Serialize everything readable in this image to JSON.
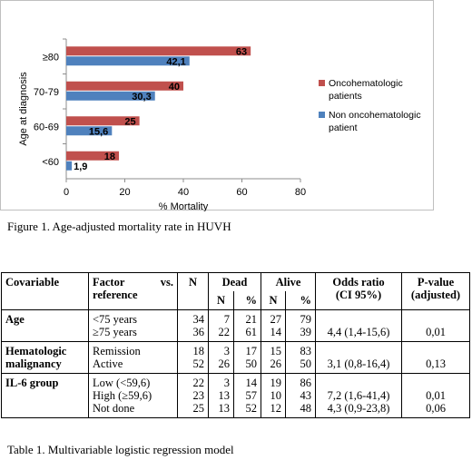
{
  "chart_data": {
    "type": "bar",
    "orientation": "horizontal",
    "categories": [
      "<60",
      "60-69",
      "70-79",
      "≥80"
    ],
    "series": [
      {
        "name": "Oncohematologic patients",
        "color": "#c0504d",
        "values": [
          18,
          25,
          40,
          63
        ],
        "labels": [
          "18",
          "25",
          "40",
          "63"
        ]
      },
      {
        "name": "Non oncohematologic patient",
        "color": "#4f81bd",
        "values": [
          1.9,
          15.6,
          30.3,
          42.1
        ],
        "labels": [
          "1,9",
          "15,6",
          "30,3",
          "42,1"
        ]
      }
    ],
    "xlabel": "% Mortality",
    "ylabel": "Age at diagnosis",
    "xlim": [
      0,
      80
    ],
    "xticks": [
      "0",
      "20",
      "40",
      "60",
      "80"
    ],
    "grid": false,
    "legend_position": "right"
  },
  "figure_caption": "Figure 1. Age-adjusted mortality rate in HUVH",
  "table": {
    "headers": {
      "covariable": "Covariable",
      "factor_line1": "Factor",
      "factor_vs": "vs.",
      "factor_line2": "reference",
      "n": "N",
      "dead": "Dead",
      "alive": "Alive",
      "sub_n": "N",
      "sub_pct": "%",
      "or_line1": "Odds ratio",
      "or_line2": "(CI 95%)",
      "p_line1": "P-value",
      "p_line2": "(adjusted)"
    },
    "groups": [
      {
        "name": "Age",
        "rows": [
          {
            "factor": "<75 years",
            "n": "34",
            "dead_n": "7",
            "dead_pct": "21",
            "alive_n": "27",
            "alive_pct": "79",
            "or": "",
            "p": ""
          },
          {
            "factor": "≥75 years",
            "n": "36",
            "dead_n": "22",
            "dead_pct": "61",
            "alive_n": "14",
            "alive_pct": "39",
            "or": "4,4 (1,4-15,6)",
            "p": "0,01"
          }
        ]
      },
      {
        "name": "Hematologic malignancy",
        "rows": [
          {
            "factor": "Remission",
            "n": "18",
            "dead_n": "3",
            "dead_pct": "17",
            "alive_n": "15",
            "alive_pct": "83",
            "or": "",
            "p": ""
          },
          {
            "factor": "Active",
            "n": "52",
            "dead_n": "26",
            "dead_pct": "50",
            "alive_n": "26",
            "alive_pct": "50",
            "or": "3,1 (0,8-16,4)",
            "p": "0,13"
          }
        ]
      },
      {
        "name": "IL-6 group",
        "rows": [
          {
            "factor": "Low (<59,6)",
            "n": "22",
            "dead_n": "3",
            "dead_pct": "14",
            "alive_n": "19",
            "alive_pct": "86",
            "or": "",
            "p": ""
          },
          {
            "factor": "High (≥59,6)",
            "n": "23",
            "dead_n": "13",
            "dead_pct": "57",
            "alive_n": "10",
            "alive_pct": "43",
            "or": "7,2 (1,6-41,4)",
            "p": "0,01"
          },
          {
            "factor": "Not done",
            "n": "25",
            "dead_n": "13",
            "dead_pct": "52",
            "alive_n": "12",
            "alive_pct": "48",
            "or": "4,3 (0,9-23,8)",
            "p": "0,06"
          }
        ]
      }
    ]
  },
  "table_caption": "Table 1. Multivariable logistic regression model"
}
